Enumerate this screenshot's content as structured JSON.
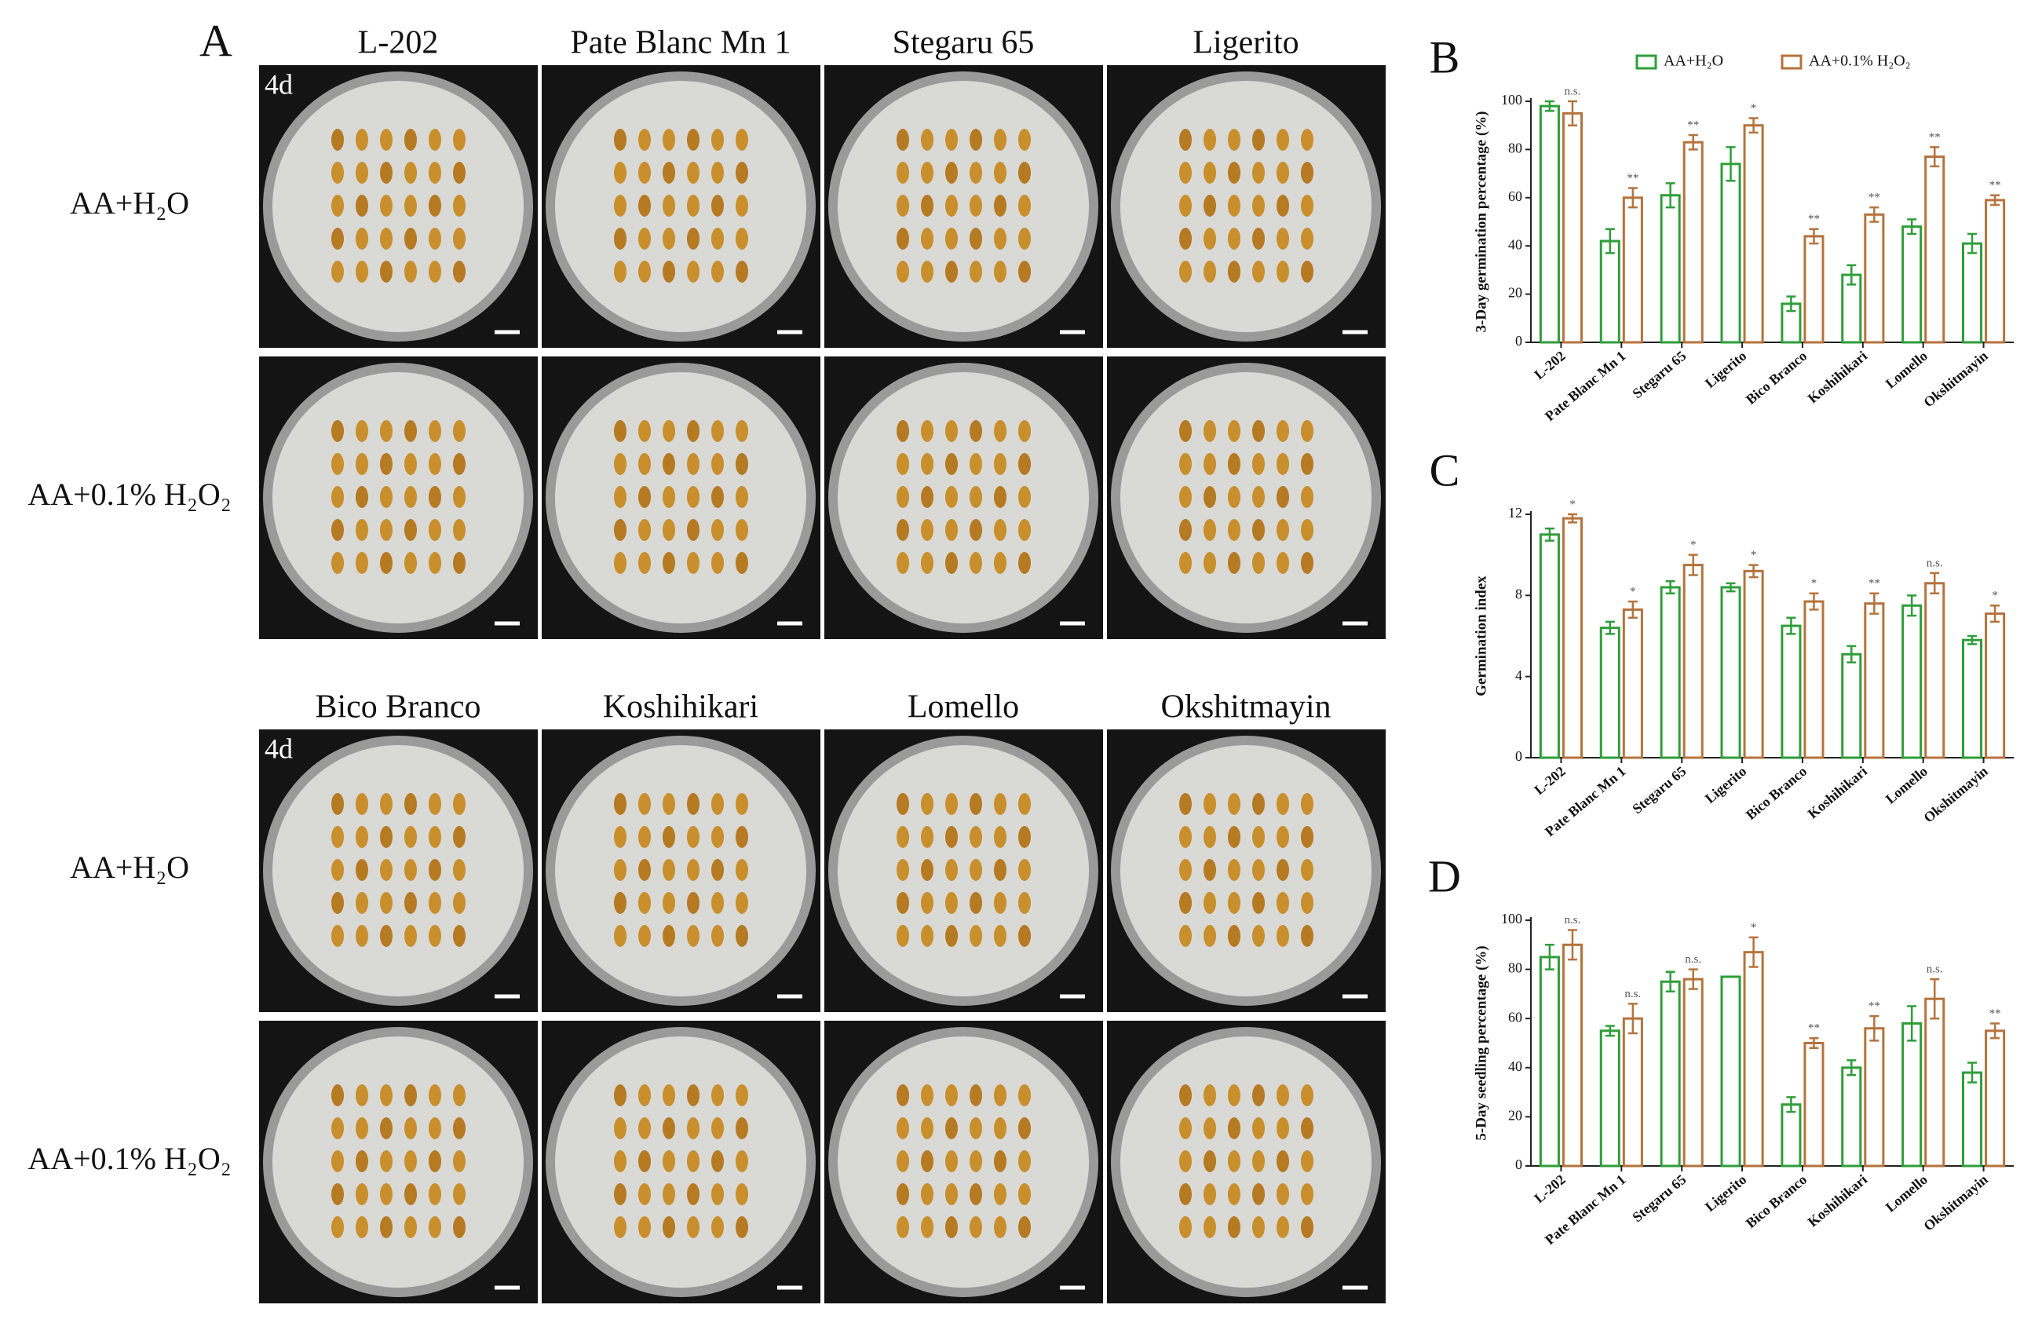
{
  "figure": {
    "panel_label": "A",
    "groups": [
      {
        "day": "4d",
        "varieties": [
          "L-202",
          "Pate Blanc Mn 1",
          "Stegaru 65",
          "Ligerito"
        ],
        "treatments": [
          "AA+H₂O",
          "AA+0.1% H₂O₂"
        ]
      },
      {
        "day": "4d",
        "varieties": [
          "Bico Branco",
          "Koshihikari",
          "Lomello",
          "Okshitmayin"
        ],
        "treatments": [
          "AA+H₂O",
          "AA+0.1% H₂O₂"
        ]
      }
    ]
  },
  "chart_data": [
    {
      "type": "bar",
      "label": "B",
      "y_label": "3-Day germination percentage (%)",
      "categories": [
        "L-202",
        "Pate Blanc Mn 1",
        "Stegaru 65",
        "Ligerito",
        "Bico Branco",
        "Koshihikari",
        "Lomello",
        "Okshitmayin"
      ],
      "series": [
        {
          "name": "AA+H₂O",
          "color": "#2e9e3a",
          "values": [
            98,
            42,
            61,
            74,
            16,
            28,
            48,
            41
          ],
          "errors": [
            2,
            5,
            5,
            7,
            3,
            4,
            3,
            4
          ]
        },
        {
          "name": "AA+0.1% H₂O₂",
          "color": "#b5733c",
          "values": [
            95,
            60,
            83,
            90,
            44,
            53,
            77,
            59
          ],
          "errors": [
            5,
            4,
            3,
            3,
            3,
            3,
            4,
            2
          ]
        }
      ],
      "significance": [
        "n.s.",
        "**",
        "**",
        "*",
        "**",
        "**",
        "**",
        "**"
      ],
      "ylim": [
        0,
        100
      ],
      "yticks": [
        0,
        20,
        40,
        60,
        80,
        100
      ],
      "legend": "top"
    },
    {
      "type": "bar",
      "label": "C",
      "y_label": "Germination index",
      "categories": [
        "L-202",
        "Pate Blanc Mn 1",
        "Stegaru 65",
        "Ligerito",
        "Bico Branco",
        "Koshihikari",
        "Lomello",
        "Okshitmayin"
      ],
      "series": [
        {
          "color": "#2e9e3a",
          "values": [
            11.0,
            6.4,
            8.4,
            8.4,
            6.5,
            5.1,
            7.5,
            5.8
          ],
          "errors": [
            0.3,
            0.3,
            0.3,
            0.2,
            0.4,
            0.4,
            0.5,
            0.2
          ]
        },
        {
          "color": "#b5733c",
          "values": [
            11.8,
            7.3,
            9.5,
            9.2,
            7.7,
            7.6,
            8.6,
            7.1
          ],
          "errors": [
            0.2,
            0.4,
            0.5,
            0.3,
            0.4,
            0.5,
            0.5,
            0.4
          ]
        }
      ],
      "significance": [
        "*",
        "*",
        "*",
        "*",
        "*",
        "**",
        "n.s.",
        "*"
      ],
      "ylim": [
        0,
        12
      ],
      "yticks": [
        0,
        4,
        8,
        12
      ]
    },
    {
      "type": "bar",
      "label": "D",
      "y_label": "5-Day seedling percentage (%)",
      "categories": [
        "L-202",
        "Pate Blanc Mn 1",
        "Stegaru 65",
        "Ligerito",
        "Bico Branco",
        "Koshihikari",
        "Lomello",
        "Okshitmayin"
      ],
      "series": [
        {
          "color": "#2e9e3a",
          "values": [
            85,
            55,
            75,
            77,
            25,
            40,
            58,
            38
          ],
          "errors": [
            5,
            2,
            4,
            0,
            3,
            3,
            7,
            4
          ]
        },
        {
          "color": "#b5733c",
          "values": [
            90,
            60,
            76,
            87,
            50,
            56,
            68,
            55
          ],
          "errors": [
            6,
            6,
            4,
            6,
            2,
            5,
            8,
            3
          ]
        }
      ],
      "significance": [
        "n.s.",
        "n.s.",
        "n.s.",
        "*",
        "**",
        "**",
        "n.s.",
        "**"
      ],
      "ylim": [
        0,
        100
      ],
      "yticks": [
        0,
        20,
        40,
        60,
        80,
        100
      ]
    }
  ]
}
